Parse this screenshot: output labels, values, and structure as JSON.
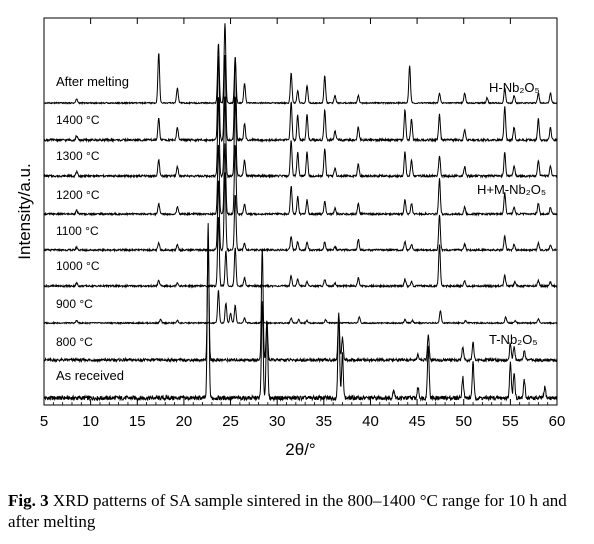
{
  "chart_data": {
    "type": "line",
    "title": "",
    "xlabel": "2θ/°",
    "ylabel": "Intensity/a.u.",
    "xlim": [
      5,
      60
    ],
    "xticks": [
      5,
      10,
      15,
      20,
      25,
      30,
      35,
      40,
      45,
      50,
      55,
      60
    ],
    "grid": false,
    "series": [
      {
        "name": "As received",
        "peaks": [
          [
            22.6,
            1.0
          ],
          [
            28.4,
            0.55
          ],
          [
            28.9,
            0.45
          ],
          [
            36.6,
            0.5
          ],
          [
            37.0,
            0.25
          ],
          [
            42.5,
            0.05
          ],
          [
            45.1,
            0.06
          ],
          [
            46.2,
            0.3
          ],
          [
            49.9,
            0.12
          ],
          [
            51.0,
            0.2
          ],
          [
            55.0,
            0.2
          ],
          [
            55.4,
            0.15
          ],
          [
            56.5,
            0.1
          ],
          [
            58.7,
            0.06
          ]
        ]
      },
      {
        "name": "800 °C",
        "peaks": [
          [
            22.6,
            1.05
          ],
          [
            28.4,
            1.0
          ],
          [
            28.9,
            0.35
          ],
          [
            36.6,
            0.4
          ],
          [
            37.0,
            0.2
          ],
          [
            45.1,
            0.05
          ],
          [
            46.2,
            0.22
          ],
          [
            49.9,
            0.12
          ],
          [
            51.0,
            0.16
          ],
          [
            55.0,
            0.15
          ],
          [
            55.4,
            0.12
          ],
          [
            56.5,
            0.08
          ]
        ]
      },
      {
        "name": "900 °C",
        "peaks": [
          [
            8.5,
            0.05
          ],
          [
            17.5,
            0.07
          ],
          [
            19.3,
            0.05
          ],
          [
            23.7,
            0.65
          ],
          [
            24.5,
            0.4
          ],
          [
            25.0,
            0.2
          ],
          [
            25.5,
            0.35
          ],
          [
            26.5,
            0.1
          ],
          [
            28.4,
            0.15
          ],
          [
            31.5,
            0.1
          ],
          [
            32.3,
            0.07
          ],
          [
            33.2,
            0.05
          ],
          [
            35.2,
            0.07
          ],
          [
            38.8,
            0.12
          ],
          [
            43.7,
            0.07
          ],
          [
            44.5,
            0.05
          ],
          [
            47.5,
            0.25
          ],
          [
            50.2,
            0.05
          ],
          [
            54.5,
            0.12
          ],
          [
            55.5,
            0.05
          ],
          [
            58.0,
            0.08
          ]
        ]
      },
      {
        "name": "1000 °C",
        "peaks": [
          [
            8.5,
            0.04
          ],
          [
            17.3,
            0.08
          ],
          [
            19.3,
            0.05
          ],
          [
            23.7,
            1.0
          ],
          [
            24.5,
            0.5
          ],
          [
            25.5,
            0.55
          ],
          [
            26.5,
            0.12
          ],
          [
            31.5,
            0.15
          ],
          [
            32.2,
            0.1
          ],
          [
            33.2,
            0.06
          ],
          [
            35.1,
            0.1
          ],
          [
            36.2,
            0.04
          ],
          [
            38.7,
            0.12
          ],
          [
            43.7,
            0.1
          ],
          [
            44.4,
            0.06
          ],
          [
            47.4,
            0.6
          ],
          [
            50.1,
            0.07
          ],
          [
            54.4,
            0.15
          ],
          [
            55.5,
            0.06
          ],
          [
            58.0,
            0.08
          ],
          [
            59.3,
            0.06
          ]
        ]
      },
      {
        "name": "1100 °C",
        "peaks": [
          [
            8.5,
            0.04
          ],
          [
            17.3,
            0.1
          ],
          [
            19.3,
            0.08
          ],
          [
            23.7,
            1.0
          ],
          [
            24.4,
            1.1
          ],
          [
            25.5,
            0.8
          ],
          [
            26.5,
            0.1
          ],
          [
            31.5,
            0.2
          ],
          [
            32.2,
            0.12
          ],
          [
            33.2,
            0.1
          ],
          [
            35.1,
            0.12
          ],
          [
            36.2,
            0.05
          ],
          [
            38.7,
            0.15
          ],
          [
            43.7,
            0.12
          ],
          [
            44.4,
            0.08
          ],
          [
            47.4,
            0.5
          ],
          [
            50.1,
            0.08
          ],
          [
            54.4,
            0.2
          ],
          [
            55.4,
            0.08
          ],
          [
            58.0,
            0.1
          ],
          [
            59.3,
            0.07
          ]
        ]
      },
      {
        "name": "1200 °C",
        "peaks": [
          [
            8.5,
            0.05
          ],
          [
            17.3,
            0.15
          ],
          [
            19.3,
            0.1
          ],
          [
            23.7,
            1.0
          ],
          [
            24.4,
            1.0
          ],
          [
            25.5,
            1.0
          ],
          [
            26.5,
            0.15
          ],
          [
            31.5,
            0.4
          ],
          [
            32.2,
            0.25
          ],
          [
            33.2,
            0.2
          ],
          [
            35.1,
            0.18
          ],
          [
            36.2,
            0.08
          ],
          [
            38.7,
            0.15
          ],
          [
            43.7,
            0.2
          ],
          [
            44.4,
            0.15
          ],
          [
            47.4,
            0.5
          ],
          [
            50.1,
            0.1
          ],
          [
            54.4,
            0.3
          ],
          [
            55.4,
            0.1
          ],
          [
            58.0,
            0.15
          ],
          [
            59.3,
            0.1
          ]
        ]
      },
      {
        "name": "1300 °C",
        "peaks": [
          [
            8.5,
            0.05
          ],
          [
            17.3,
            0.2
          ],
          [
            19.3,
            0.12
          ],
          [
            23.7,
            1.0
          ],
          [
            24.4,
            1.0
          ],
          [
            25.5,
            1.0
          ],
          [
            26.5,
            0.2
          ],
          [
            31.5,
            0.45
          ],
          [
            32.2,
            0.3
          ],
          [
            33.2,
            0.3
          ],
          [
            35.1,
            0.35
          ],
          [
            36.2,
            0.1
          ],
          [
            38.7,
            0.15
          ],
          [
            43.7,
            0.3
          ],
          [
            44.4,
            0.2
          ],
          [
            47.4,
            0.25
          ],
          [
            50.1,
            0.12
          ],
          [
            54.4,
            0.3
          ],
          [
            55.4,
            0.12
          ],
          [
            58.0,
            0.2
          ],
          [
            59.3,
            0.12
          ]
        ]
      },
      {
        "name": "1400 °C",
        "peaks": [
          [
            8.5,
            0.05
          ],
          [
            17.3,
            0.25
          ],
          [
            19.3,
            0.15
          ],
          [
            23.7,
            1.0
          ],
          [
            24.4,
            1.0
          ],
          [
            25.5,
            1.0
          ],
          [
            26.5,
            0.2
          ],
          [
            31.5,
            0.45
          ],
          [
            32.2,
            0.3
          ],
          [
            33.2,
            0.3
          ],
          [
            35.1,
            0.35
          ],
          [
            36.2,
            0.1
          ],
          [
            38.7,
            0.15
          ],
          [
            43.7,
            0.35
          ],
          [
            44.4,
            0.25
          ],
          [
            47.4,
            0.3
          ],
          [
            50.1,
            0.12
          ],
          [
            54.4,
            0.4
          ],
          [
            55.4,
            0.15
          ],
          [
            58.0,
            0.25
          ],
          [
            59.3,
            0.15
          ]
        ]
      },
      {
        "name": "After melting",
        "peaks": [
          [
            8.5,
            0.08
          ],
          [
            17.3,
            1.0
          ],
          [
            19.3,
            0.3
          ],
          [
            23.7,
            1.2
          ],
          [
            24.4,
            1.6
          ],
          [
            25.5,
            0.9
          ],
          [
            26.5,
            0.4
          ],
          [
            31.5,
            0.6
          ],
          [
            32.2,
            0.25
          ],
          [
            33.2,
            0.35
          ],
          [
            35.1,
            0.55
          ],
          [
            36.2,
            0.15
          ],
          [
            38.7,
            0.15
          ],
          [
            44.2,
            0.75
          ],
          [
            47.4,
            0.2
          ],
          [
            50.1,
            0.2
          ],
          [
            52.5,
            0.1
          ],
          [
            54.4,
            0.3
          ],
          [
            55.4,
            0.15
          ],
          [
            58.0,
            0.2
          ],
          [
            59.3,
            0.2
          ]
        ]
      }
    ],
    "phase_labels": [
      "H-Nb₂O₅",
      "H+M-Nb₂O₅",
      "T-Nb₂O₅"
    ]
  },
  "caption": {
    "label": "Fig. 3",
    "text": "XRD patterns of SA sample sintered in the 800–1400 °C range for 10 h and after melting"
  }
}
